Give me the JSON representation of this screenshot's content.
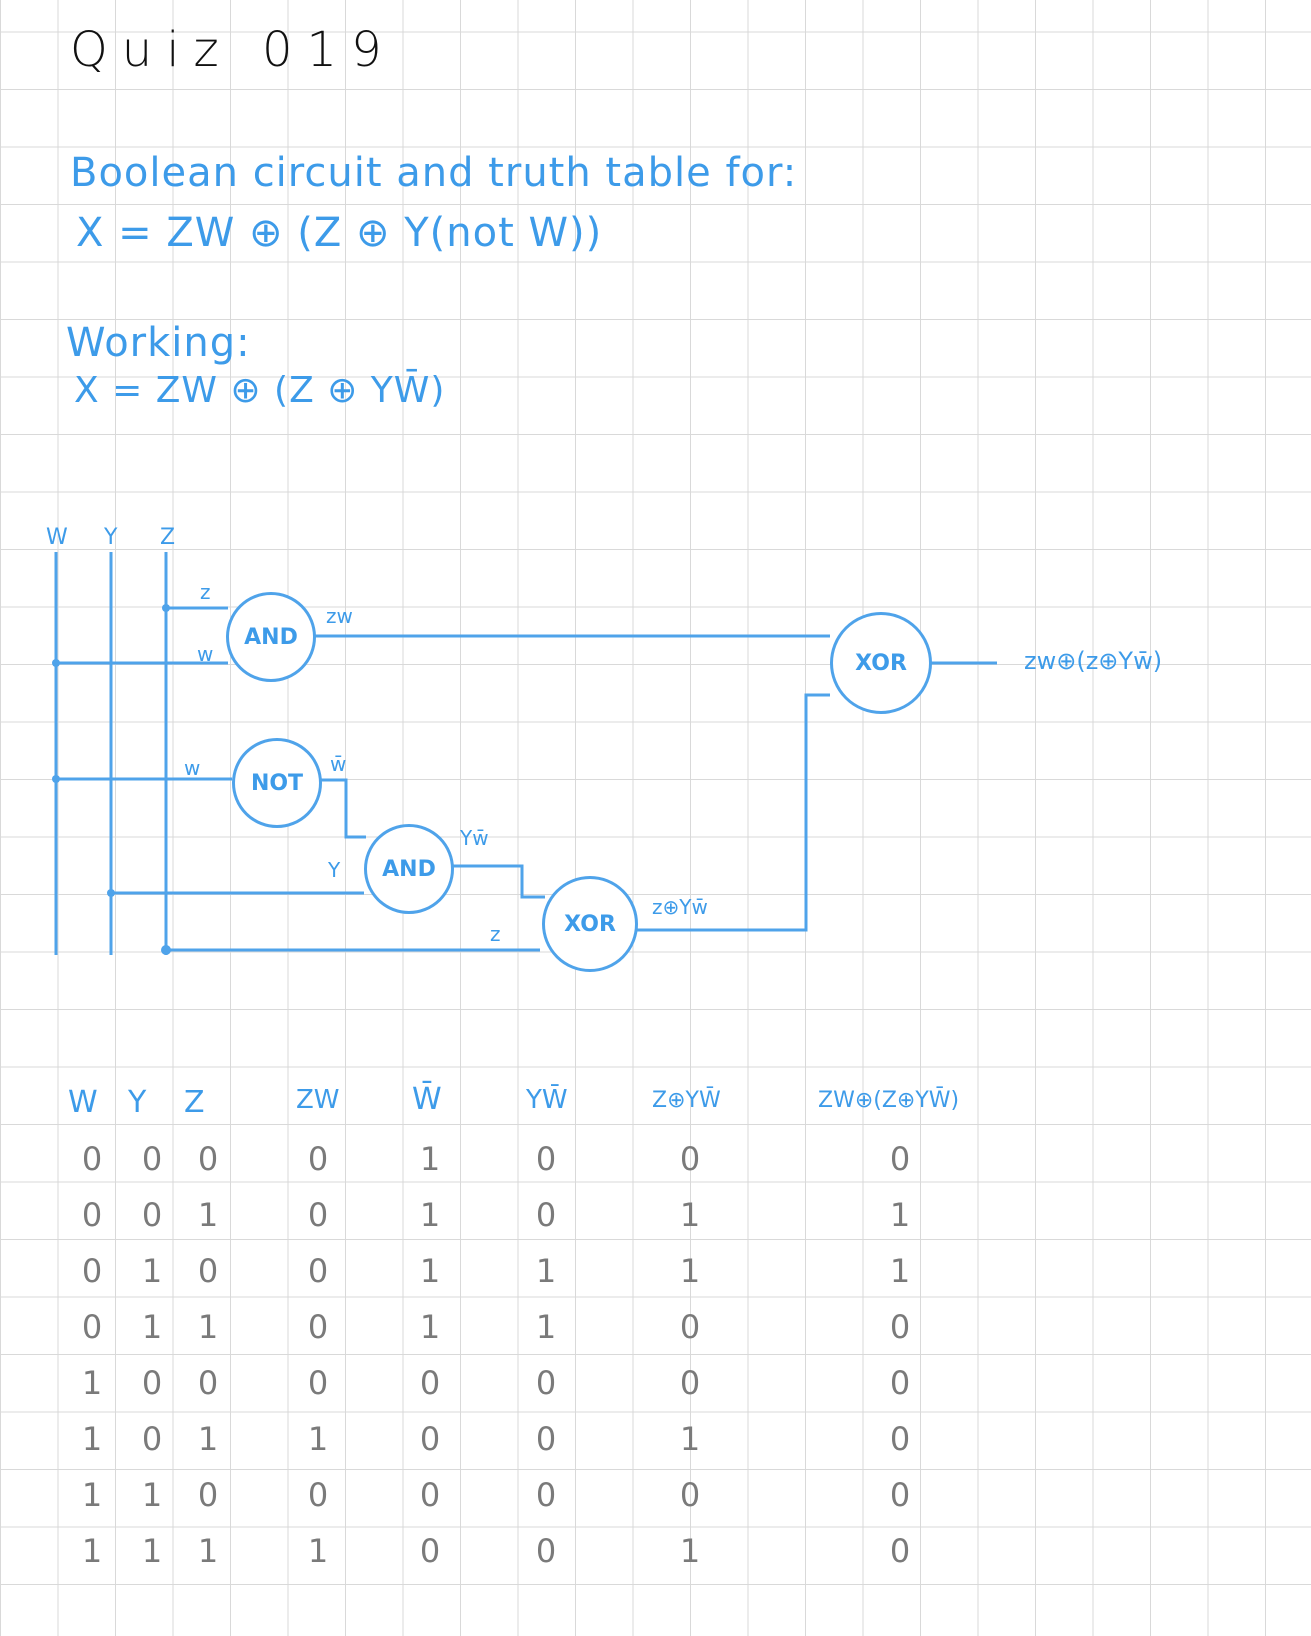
{
  "title": "Quiz 019",
  "heading_line1": "Boolean circuit and truth table for:",
  "heading_line2": "X = ZW ⊕ (Z ⊕ Y(not W))",
  "working_label": "Working:",
  "working_expr": "X = ZW ⊕ (Z ⊕ YW̄)",
  "inputs": [
    "W",
    "Y",
    "Z"
  ],
  "wire_labels": {
    "and1_z": "z",
    "and1_w": "w",
    "not_w": "w",
    "and1_out": "zw",
    "not_out": "w̄",
    "and2_y": "Y",
    "and2_out": "Yw̄",
    "xor1_z": "z",
    "xor1_out": "z⊕Yw̄",
    "output": "zw⊕(z⊕Yw̄)"
  },
  "gates": {
    "and1": "AND",
    "not1": "NOT",
    "and2": "AND",
    "xor1": "XOR",
    "xor2": "XOR"
  },
  "table": {
    "headers": [
      "W",
      "Y",
      "Z",
      "ZW",
      "W̄",
      "YW̄",
      "Z⊕YW̄",
      "ZW⊕(Z⊕YW̄)"
    ],
    "rows": [
      [
        "0",
        "0",
        "0",
        "0",
        "1",
        "0",
        "0",
        "0"
      ],
      [
        "0",
        "0",
        "1",
        "0",
        "1",
        "0",
        "1",
        "1"
      ],
      [
        "0",
        "1",
        "0",
        "0",
        "1",
        "1",
        "1",
        "1"
      ],
      [
        "0",
        "1",
        "1",
        "0",
        "1",
        "1",
        "0",
        "0"
      ],
      [
        "1",
        "0",
        "0",
        "0",
        "0",
        "0",
        "0",
        "0"
      ],
      [
        "1",
        "0",
        "1",
        "1",
        "0",
        "0",
        "1",
        "0"
      ],
      [
        "1",
        "1",
        "0",
        "0",
        "0",
        "0",
        "0",
        "0"
      ],
      [
        "1",
        "1",
        "1",
        "1",
        "0",
        "0",
        "1",
        "0"
      ]
    ]
  },
  "colors": {
    "ink_blue": "#3d9be9",
    "wire_blue": "#4fa3ea",
    "grid": "#d9d9d9",
    "pencil": "#7a7a7a"
  }
}
